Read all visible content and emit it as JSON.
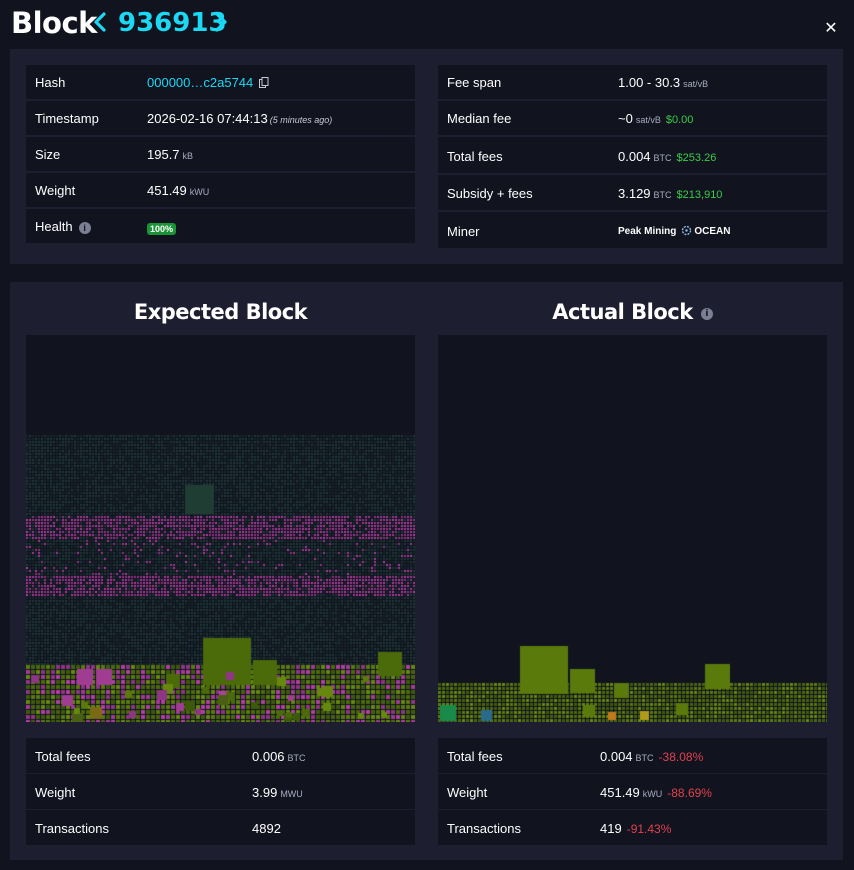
{
  "header": {
    "title": "Block",
    "block_height": "936913",
    "close_glyph": "✕"
  },
  "details_left": [
    {
      "label": "Hash",
      "value": "000000…c2a5744"
    },
    {
      "label": "Timestamp",
      "value": "2026-02-16 07:44:13",
      "note": "(5 minutes ago)"
    },
    {
      "label": "Size",
      "value": "195.7",
      "unit": "kB"
    },
    {
      "label": "Weight",
      "value": "451.49",
      "unit": "kWU"
    },
    {
      "label": "Health",
      "badge": "100%"
    }
  ],
  "details_right": [
    {
      "label": "Fee span",
      "value": "1.00 - 30.3",
      "unit": "sat/vB"
    },
    {
      "label": "Median fee",
      "value": "~0",
      "unit": "sat/vB",
      "usd": "$0.00"
    },
    {
      "label": "Total fees",
      "value": "0.004",
      "unit": "BTC",
      "usd": "$253.26"
    },
    {
      "label": "Subsidy + fees",
      "value": "3.129",
      "unit": "BTC",
      "usd": "$213,910"
    },
    {
      "label": "Miner",
      "miner_name": "Peak Mining",
      "pool_name": "OCEAN"
    }
  ],
  "expected_block": {
    "title": "Expected Block",
    "stats": [
      {
        "label": "Total fees",
        "value": "0.006",
        "unit": "BTC"
      },
      {
        "label": "Weight",
        "value": "3.99",
        "unit": "MWU"
      },
      {
        "label": "Transactions",
        "value": "4892"
      }
    ]
  },
  "actual_block": {
    "title": "Actual Block",
    "stats": [
      {
        "label": "Total fees",
        "value": "0.004",
        "unit": "BTC",
        "delta": "-38.08%"
      },
      {
        "label": "Weight",
        "value": "451.49",
        "unit": "kWU",
        "delta": "-88.69%"
      },
      {
        "label": "Transactions",
        "value": "419",
        "delta": "-91.43%"
      }
    ]
  },
  "colors": {
    "accent": "#1bd8f4",
    "usd_green": "#3bcc49",
    "negative": "#e0424f",
    "health_badge": "#1a9436",
    "panel": "#1d1f31",
    "row": "#11131f",
    "tx_olive": "#5a7a0c",
    "tx_magenta": "#b0409f",
    "tx_dark_teal": "#1f3d33"
  },
  "icons": [
    "chevron-left-icon",
    "chevron-right-icon",
    "close-icon",
    "copy-icon",
    "info-icon",
    "ocean-pool-icon"
  ]
}
